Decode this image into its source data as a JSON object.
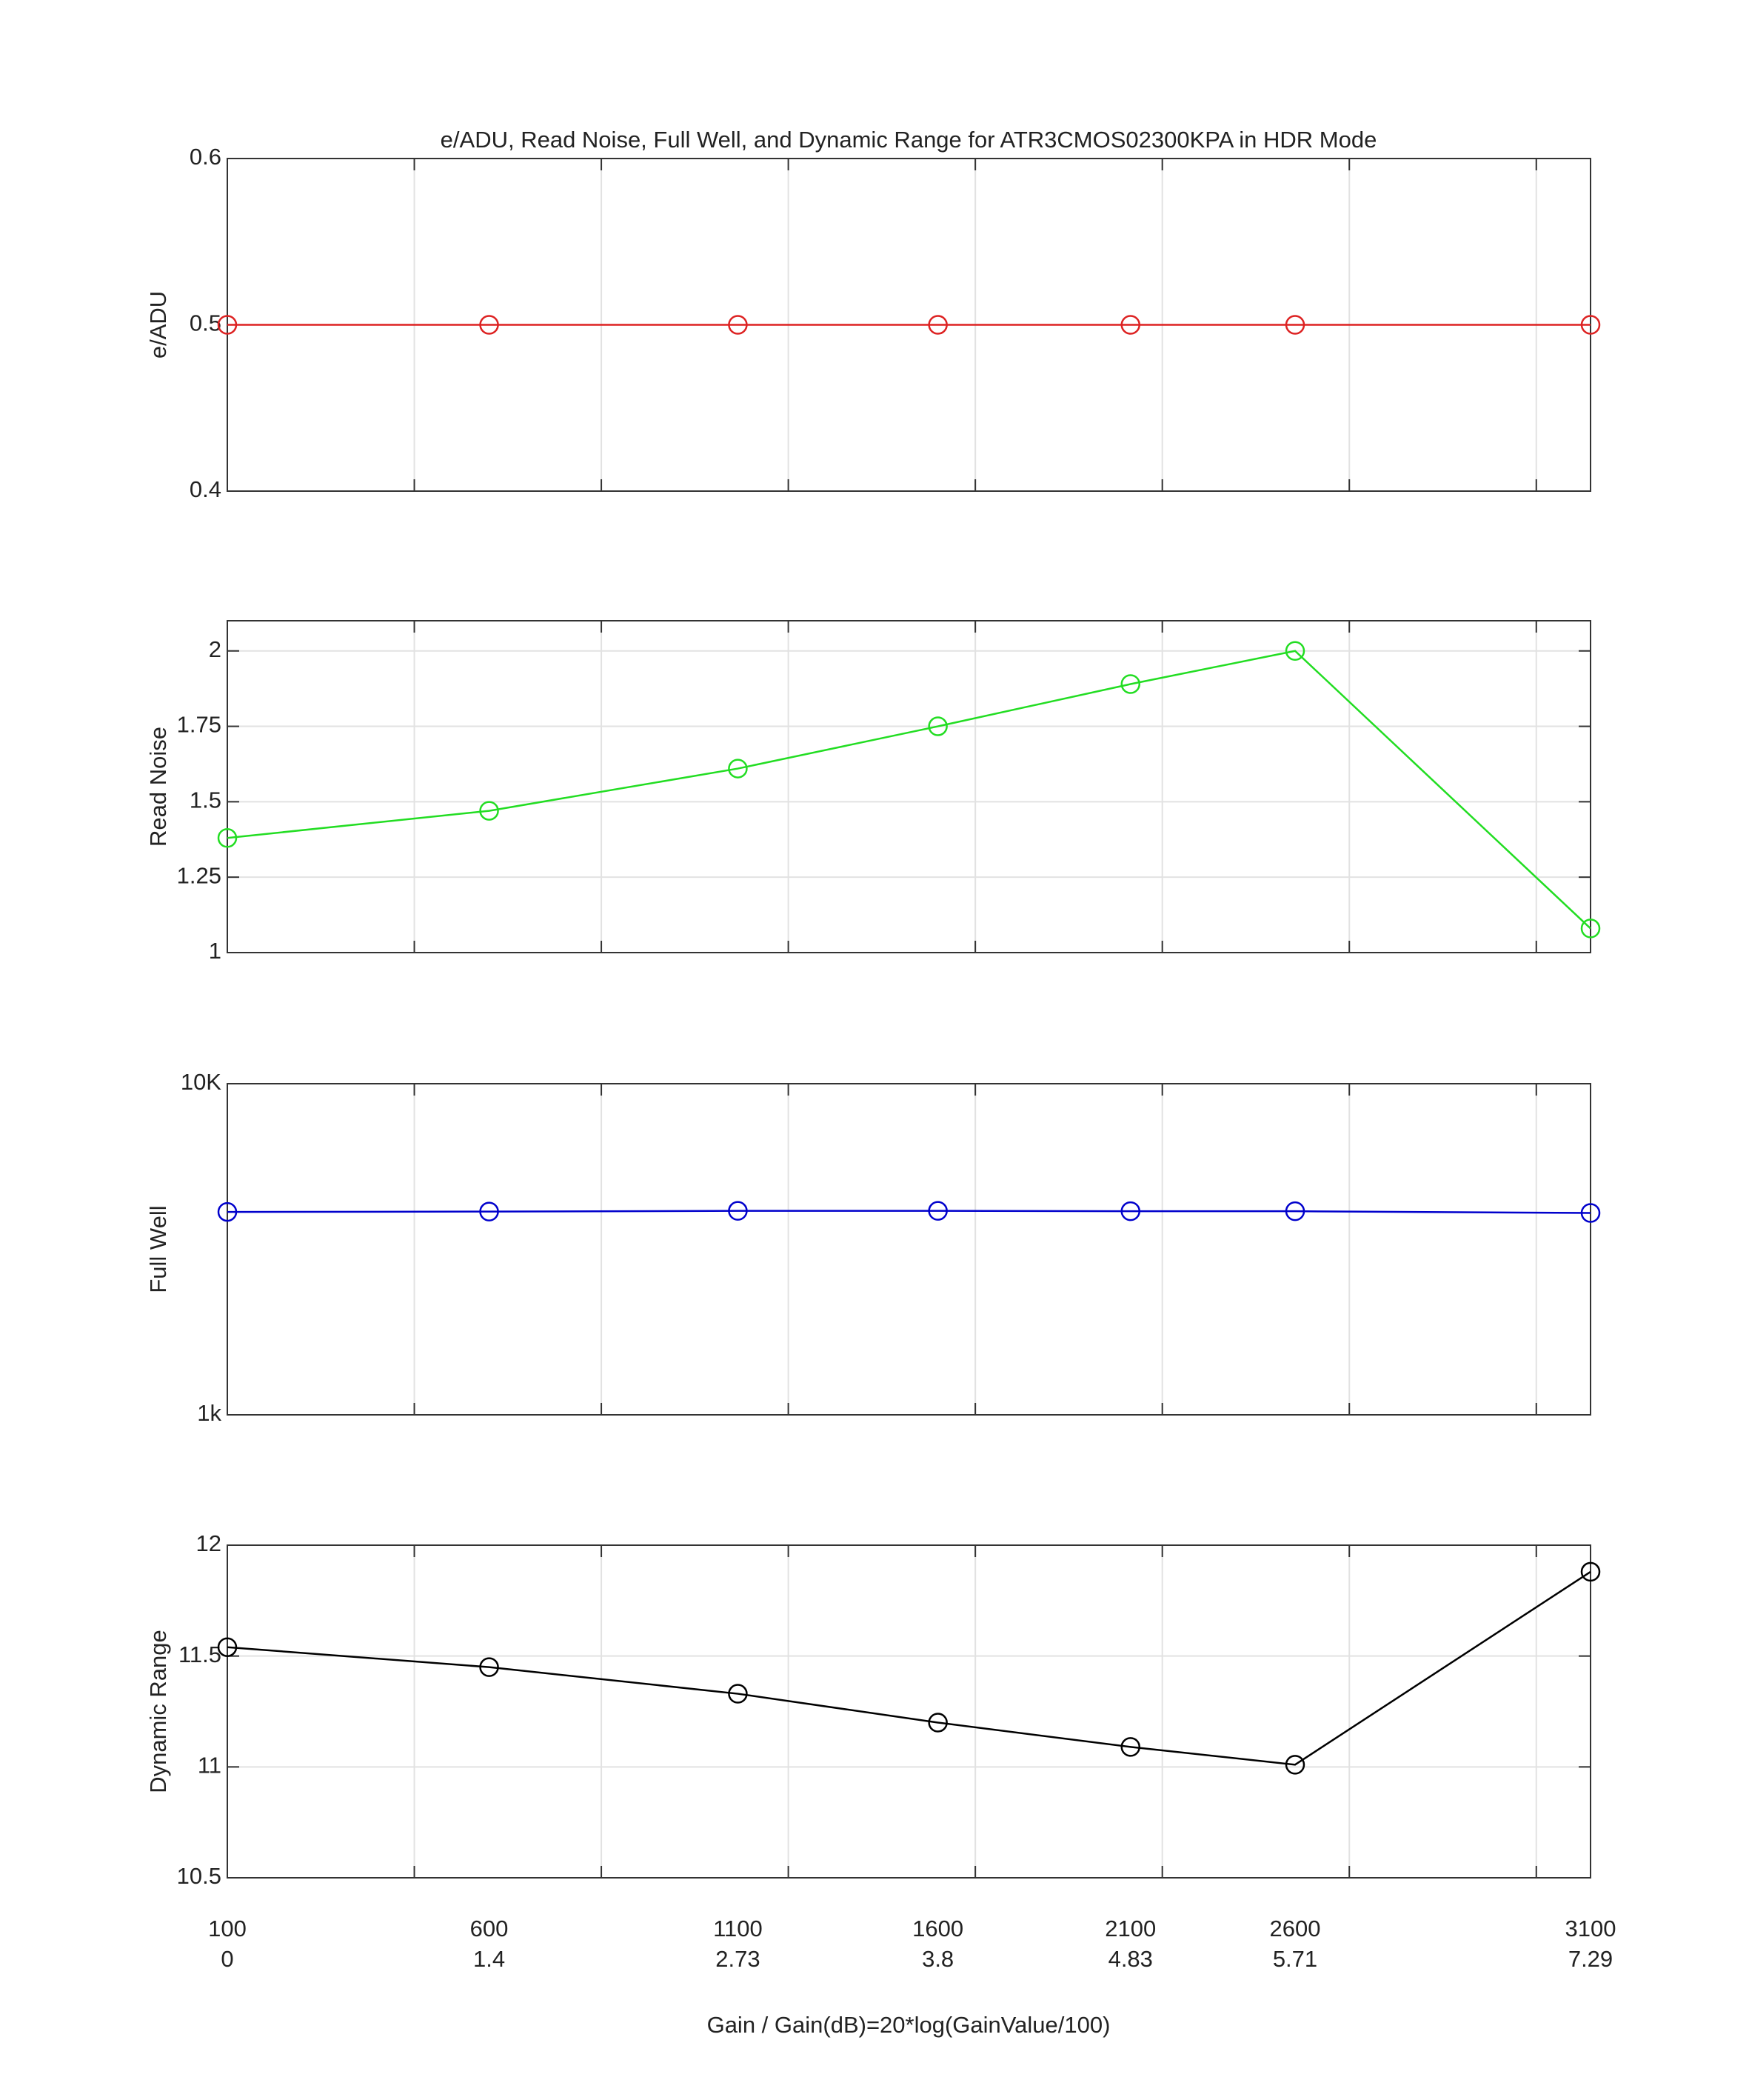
{
  "chart_data": {
    "type": "line",
    "title": "e/ADU, Read Noise, Full Well, and Dynamic Range for ATR3CMOS02300KPA in HDR Mode",
    "xlabel": "Gain / Gain(dB)=20*log(GainValue/100)",
    "x": [
      0,
      1.4,
      2.73,
      3.8,
      4.83,
      5.71,
      7.29
    ],
    "gain": [
      100,
      600,
      1100,
      1600,
      2100,
      2600,
      3100
    ],
    "xlim": [
      0,
      7.29
    ],
    "xticks": [
      1,
      2,
      3,
      4,
      5,
      6,
      7
    ],
    "grid": true,
    "panels": [
      {
        "ylabel": "e/ADU",
        "color": "#dd2222",
        "values": [
          0.5,
          0.5,
          0.5,
          0.5,
          0.5,
          0.5,
          0.5
        ],
        "ylim": [
          0.4,
          0.6
        ],
        "yticks": [
          0.4,
          0.5,
          0.6
        ]
      },
      {
        "ylabel": "Read Noise",
        "color": "#22dd22",
        "values": [
          1.38,
          1.47,
          1.61,
          1.75,
          1.89,
          2.0,
          1.08
        ],
        "ylim": [
          1,
          2.1
        ],
        "yticks": [
          1,
          1.25,
          1.5,
          1.75,
          2
        ]
      },
      {
        "ylabel": "Full Well",
        "color": "#0000cc",
        "values": [
          4100,
          4110,
          4130,
          4130,
          4120,
          4120,
          4070
        ],
        "ylim": [
          1000,
          10000
        ],
        "log": true,
        "yticks": [
          {
            "value": 1000,
            "label": "1k"
          },
          {
            "value": 10000,
            "label": "10K"
          }
        ]
      },
      {
        "ylabel": "Dynamic Range",
        "color": "#000000",
        "values": [
          11.54,
          11.45,
          11.33,
          11.2,
          11.09,
          11.01,
          11.88
        ],
        "ylim": [
          10.5,
          12
        ],
        "yticks": [
          10.5,
          11,
          11.5,
          12
        ]
      }
    ]
  }
}
